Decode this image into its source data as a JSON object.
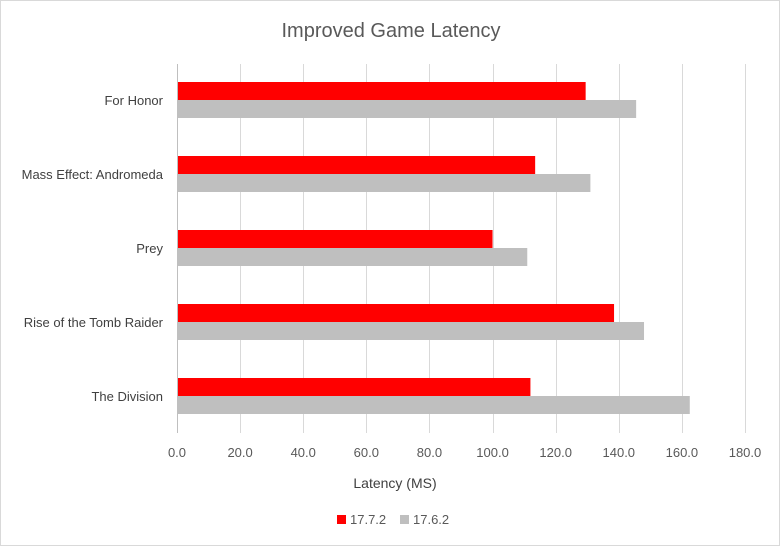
{
  "chart_data": {
    "type": "bar",
    "orientation": "horizontal",
    "title": "Improved Game Latency",
    "xlabel": "Latency (MS)",
    "ylabel": "",
    "categories": [
      "For Honor",
      "Mass Effect: Andromeda",
      "Prey",
      "Rise of the Tomb Raider",
      "The Division"
    ],
    "series": [
      {
        "name": "17.7.2",
        "color": "#ff0000",
        "values": [
          129.5,
          113.5,
          100.0,
          138.5,
          112.0
        ]
      },
      {
        "name": "17.6.2",
        "color": "#bfbfbf",
        "values": [
          145.5,
          131.0,
          111.0,
          148.0,
          162.5
        ]
      }
    ],
    "xlim": [
      0,
      180
    ],
    "xticks": [
      0,
      20,
      40,
      60,
      80,
      100,
      120,
      140,
      160,
      180
    ],
    "tick_labels": [
      "0.0",
      "20.0",
      "40.0",
      "60.0",
      "80.0",
      "100.0",
      "120.0",
      "140.0",
      "160.0",
      "180.0"
    ],
    "grid": "vertical",
    "legend_position": "bottom"
  }
}
